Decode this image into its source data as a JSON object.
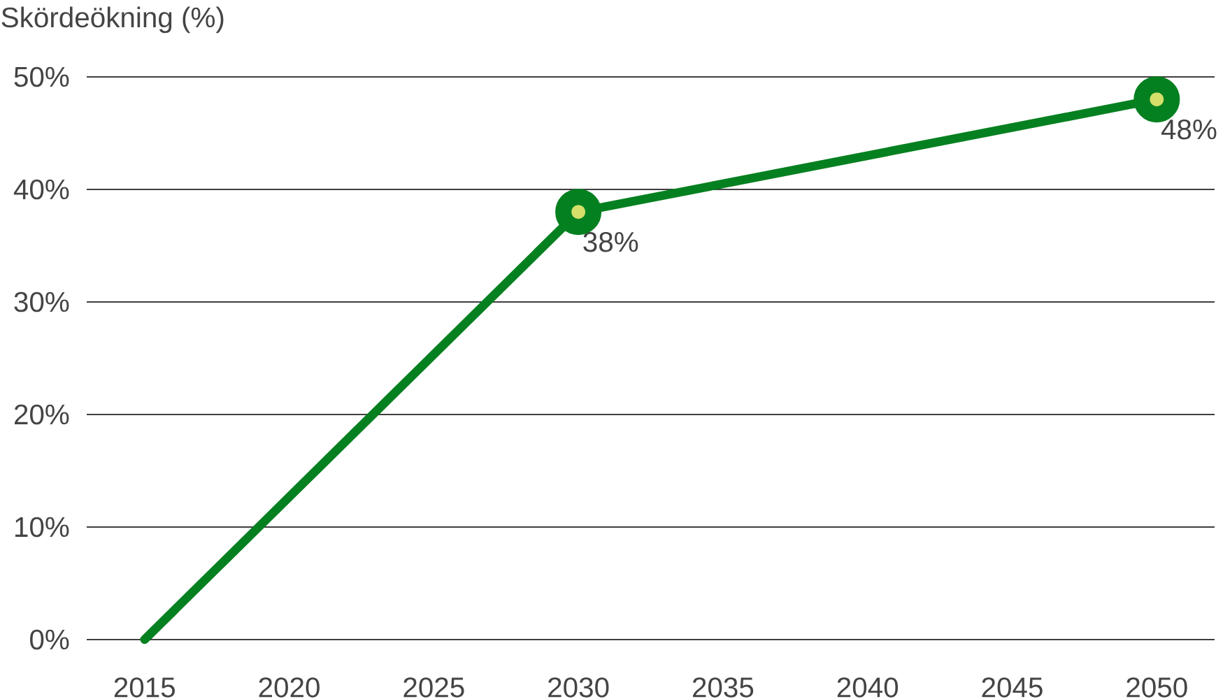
{
  "chart_data": {
    "type": "line",
    "ylabel": "Skördeökning (%)",
    "x": [
      2015,
      2030,
      2050
    ],
    "series": [
      {
        "color": "#058020",
        "values": [
          0,
          38,
          48
        ],
        "value_labels": [
          null,
          "38%",
          "48%"
        ]
      }
    ],
    "xlim": [
      2013,
      2052
    ],
    "xticks": [
      2015,
      2020,
      2025,
      2030,
      2035,
      2040,
      2045,
      2050
    ],
    "ylim": [
      0,
      50
    ],
    "yticks": [
      {
        "value": 0,
        "label": "0%"
      },
      {
        "value": 10,
        "label": "10%"
      },
      {
        "value": 20,
        "label": "20%"
      },
      {
        "value": 30,
        "label": "30%"
      },
      {
        "value": 40,
        "label": "40%"
      },
      {
        "value": 50,
        "label": "50%"
      }
    ],
    "grid": "y",
    "marker": "circle",
    "line_style": "solid"
  }
}
